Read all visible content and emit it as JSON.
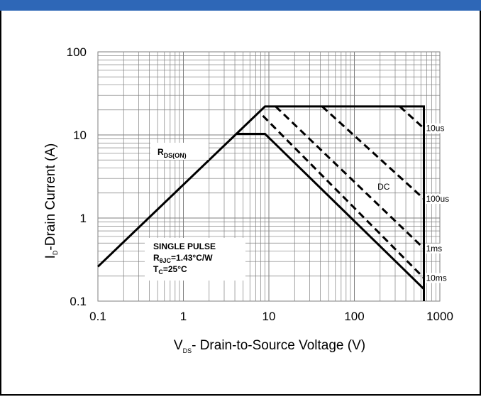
{
  "colors": {
    "header": "#2e67b7",
    "line": "#000000",
    "grid": "#7f7f7f"
  },
  "chart_data": {
    "type": "line",
    "title": "",
    "xlabel": {
      "main": "V",
      "sub": "DS",
      "rest": "- Drain-to-Source Voltage (V)"
    },
    "ylabel": {
      "main": "I",
      "sub": "D",
      "rest": "-Drain Current (A)"
    },
    "xscale": "log",
    "yscale": "log",
    "xlim": [
      0.1,
      1000
    ],
    "ylim": [
      0.1,
      100
    ],
    "grid": true,
    "x_ticks": [
      {
        "value": 0.1,
        "label": "0.1"
      },
      {
        "value": 1,
        "label": "1"
      },
      {
        "value": 10,
        "label": "10"
      },
      {
        "value": 100,
        "label": "100"
      },
      {
        "value": 1000,
        "label": "1000"
      }
    ],
    "y_ticks": [
      {
        "value": 0.1,
        "label": "0.1"
      },
      {
        "value": 1,
        "label": "1"
      },
      {
        "value": 10,
        "label": "10"
      },
      {
        "value": 100,
        "label": "100"
      }
    ],
    "series": [
      {
        "name": "DC",
        "style": "solid",
        "x": [
          4.2,
          9,
          650
        ],
        "y": [
          10.3,
          10.3,
          0.14
        ]
      },
      {
        "name": "10us",
        "style": "dashed",
        "x": [
          340,
          650
        ],
        "y": [
          22,
          12
        ]
      },
      {
        "name": "100us",
        "style": "dashed",
        "x": [
          42,
          650
        ],
        "y": [
          22,
          1.7
        ]
      },
      {
        "name": "1ms",
        "style": "dashed",
        "x": [
          12,
          650
        ],
        "y": [
          22,
          0.43
        ]
      },
      {
        "name": "10ms",
        "style": "dashed",
        "x": [
          8.5,
          650
        ],
        "y": [
          17,
          0.19
        ]
      },
      {
        "name": "",
        "style": "solid",
        "x": [
          0.1,
          9,
          650,
          650
        ],
        "y": [
          0.26,
          22,
          22,
          0.1
        ]
      }
    ],
    "annotations": {
      "rds": {
        "main": "R",
        "sub": "DS(ON)"
      },
      "box": {
        "line1": "SINGLE PULSE",
        "line2": {
          "main": "R",
          "sub": "θJC",
          "rest": "=1.43°C/W"
        },
        "line3": {
          "main": "T",
          "sub": "C",
          "rest": "=25°C"
        }
      }
    }
  }
}
